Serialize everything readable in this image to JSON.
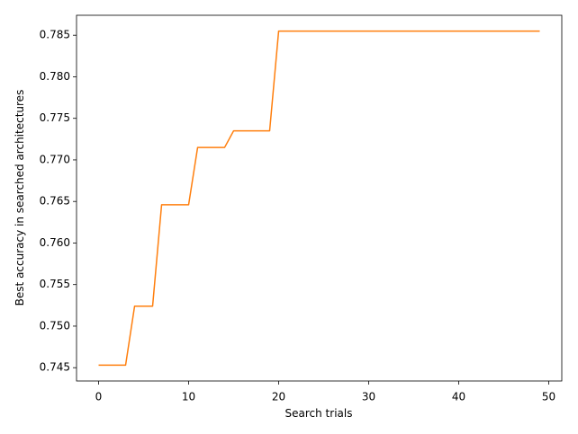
{
  "chart_data": {
    "type": "line",
    "x_label": "Search trials",
    "y_label": "Best accuracy in searched architectures",
    "x": [
      0,
      1,
      2,
      3,
      4,
      5,
      6,
      7,
      8,
      9,
      10,
      11,
      12,
      13,
      14,
      15,
      16,
      17,
      18,
      19,
      20,
      21,
      22,
      23,
      24,
      25,
      26,
      27,
      28,
      29,
      30,
      31,
      32,
      33,
      34,
      35,
      36,
      37,
      38,
      39,
      40,
      41,
      42,
      43,
      44,
      45,
      46,
      47,
      48,
      49
    ],
    "series": [
      {
        "color": "#ff7f0e",
        "values": [
          0.7453,
          0.7453,
          0.7453,
          0.7453,
          0.7524,
          0.7524,
          0.7524,
          0.7646,
          0.7646,
          0.7646,
          0.7646,
          0.7715,
          0.7715,
          0.7715,
          0.7715,
          0.7735,
          0.7735,
          0.7735,
          0.7735,
          0.7735,
          0.7855,
          0.7855,
          0.7855,
          0.7855,
          0.7855,
          0.7855,
          0.7855,
          0.7855,
          0.7855,
          0.7855,
          0.7855,
          0.7855,
          0.7855,
          0.7855,
          0.7855,
          0.7855,
          0.7855,
          0.7855,
          0.7855,
          0.7855,
          0.7855,
          0.7855,
          0.7855,
          0.7855,
          0.7855,
          0.7855,
          0.7855,
          0.7855,
          0.7855,
          0.7855
        ]
      }
    ],
    "xlim": [
      -2.45,
      51.45
    ],
    "xticks": [
      0,
      10,
      20,
      30,
      40,
      50
    ],
    "ylim": [
      0.7434,
      0.7874
    ],
    "yticks": [
      0.745,
      {
        "value": 0.75,
        "label": "0.750"
      },
      0.755,
      {
        "value": 0.76,
        "label": "0.760"
      },
      0.765,
      {
        "value": 0.77,
        "label": "0.770"
      },
      0.775,
      {
        "value": 0.78,
        "label": "0.780"
      },
      0.785
    ],
    "grid": false
  }
}
